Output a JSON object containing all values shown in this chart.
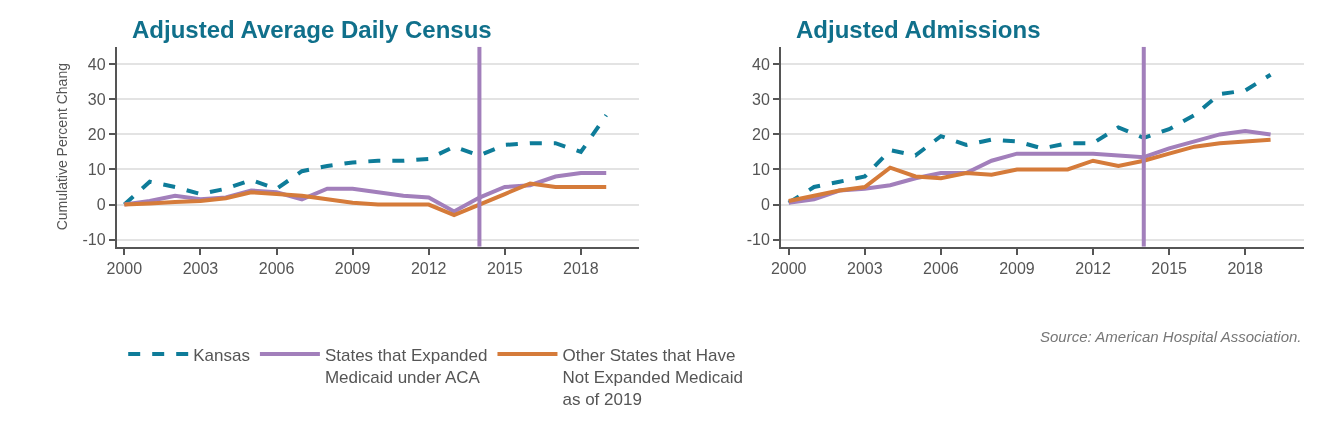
{
  "chart_data": [
    {
      "type": "line",
      "title": "Adjusted Average Daily Census",
      "ylabel": "Cumulative Percent Chang",
      "x": [
        2000,
        2001,
        2002,
        2003,
        2004,
        2005,
        2006,
        2007,
        2008,
        2009,
        2010,
        2011,
        2012,
        2013,
        2014,
        2015,
        2016,
        2017,
        2018,
        2019
      ],
      "series": [
        {
          "name": "Kansas",
          "color": "#0e7c99",
          "line_style": "dashed",
          "values": [
            0,
            6.5,
            5,
            3,
            4.5,
            7,
            4.5,
            9.5,
            11,
            12,
            12.5,
            12.5,
            13,
            16.5,
            14,
            17,
            17.5,
            17.5,
            15,
            25.5
          ]
        },
        {
          "name": "States that Expanded Medicaid under ACA",
          "color": "#a27fbb",
          "line_style": "solid",
          "values": [
            0,
            1,
            2.5,
            1.5,
            2,
            4,
            3.5,
            1.5,
            4.5,
            4.5,
            3.5,
            2.5,
            2,
            -2,
            2,
            5,
            5.5,
            8,
            9,
            9
          ]
        },
        {
          "name": "Other States that Have Not Expanded Medicaid as of 2019",
          "color": "#d57b3a",
          "line_style": "solid",
          "values": [
            0,
            0.3,
            0.7,
            1,
            1.8,
            3.5,
            3,
            2.5,
            1.5,
            0.5,
            0,
            0,
            0,
            -3,
            0,
            3,
            6,
            5,
            5,
            5
          ]
        }
      ],
      "xlim": [
        1999.7,
        2020.3
      ],
      "xticks": [
        2000,
        2003,
        2006,
        2009,
        2012,
        2015,
        2018
      ],
      "ylim": [
        -12,
        45
      ],
      "yticks": [
        -10,
        0,
        10,
        20,
        30,
        40
      ],
      "ref_lines": [
        {
          "axis": "x",
          "value": 2014,
          "color": "#a27fbb"
        }
      ],
      "grid": "y",
      "marker": "none",
      "legend": "bottom"
    },
    {
      "type": "line",
      "title": "Adjusted Admissions",
      "x": [
        2000,
        2001,
        2002,
        2003,
        2004,
        2005,
        2006,
        2007,
        2008,
        2009,
        2010,
        2011,
        2012,
        2013,
        2014,
        2015,
        2016,
        2017,
        2018,
        2019
      ],
      "series": [
        {
          "name": "Kansas",
          "color": "#0e7c99",
          "line_style": "dashed",
          "values": [
            0.5,
            5,
            6.5,
            8,
            15.5,
            14,
            19.5,
            17,
            18.5,
            18,
            16,
            17.5,
            17.5,
            22,
            19,
            21.5,
            25.5,
            31.5,
            32.5,
            37
          ]
        },
        {
          "name": "States that Expanded Medicaid under ACA",
          "color": "#a27fbb",
          "line_style": "solid",
          "values": [
            0.5,
            1.5,
            4,
            4.5,
            5.5,
            7.5,
            9,
            9,
            12.5,
            14.5,
            14.5,
            14.5,
            14.5,
            14,
            13.5,
            16,
            18,
            20,
            21,
            20
          ]
        },
        {
          "name": "Other States that Have Not Expanded Medicaid as of 2019",
          "color": "#d57b3a",
          "line_style": "solid",
          "values": [
            1,
            2.5,
            4,
            5,
            10.5,
            8,
            7.5,
            9,
            8.5,
            10,
            10,
            10,
            12.5,
            11,
            12.5,
            14.5,
            16.5,
            17.5,
            18,
            18.5
          ]
        }
      ],
      "xlim": [
        1999.7,
        2020.3
      ],
      "xticks": [
        2000,
        2003,
        2006,
        2009,
        2012,
        2015,
        2018
      ],
      "ylim": [
        -12,
        45
      ],
      "yticks": [
        -10,
        0,
        10,
        20,
        30,
        40
      ],
      "ref_lines": [
        {
          "axis": "x",
          "value": 2014,
          "color": "#a27fbb"
        }
      ],
      "grid": "y",
      "marker": "none",
      "legend": "bottom",
      "annotations": [
        "Source: American Hospital Association."
      ]
    }
  ]
}
